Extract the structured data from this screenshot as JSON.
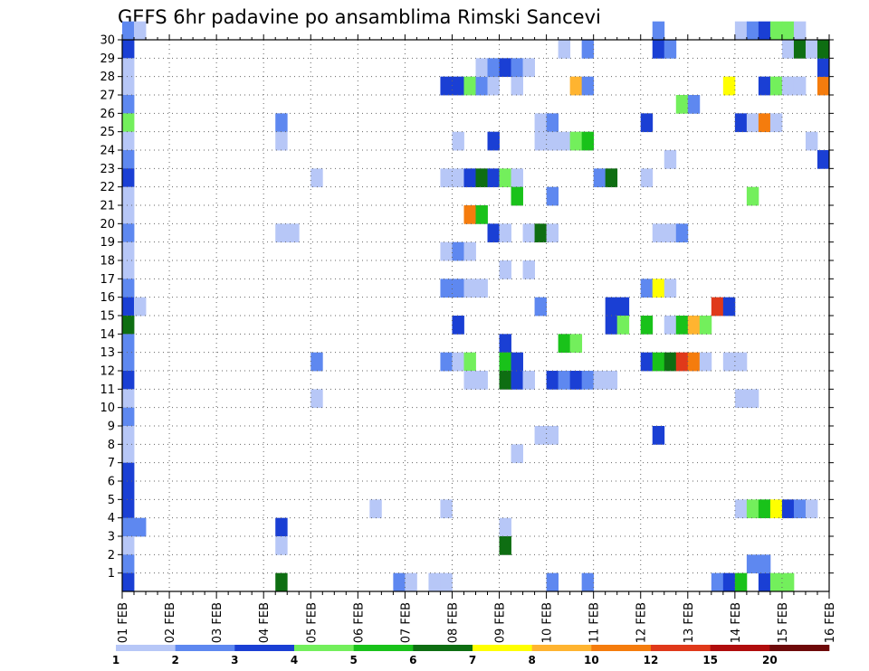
{
  "chart_data": {
    "type": "heatmap",
    "title": "GEFS 6hr padavine po ansamblima Rimski Sancevi",
    "y_ticks": [
      "1",
      "2",
      "3",
      "4",
      "5",
      "6",
      "7",
      "8",
      "9",
      "10",
      "11",
      "12",
      "13",
      "14",
      "15",
      "16",
      "17",
      "18",
      "19",
      "20",
      "21",
      "22",
      "23",
      "24",
      "25",
      "26",
      "27",
      "28",
      "29",
      "30"
    ],
    "x_ticks": [
      "01 FEB",
      "02 FEB",
      "03 FEB",
      "04 FEB",
      "05 FEB",
      "06 FEB",
      "07 FEB",
      "08 FEB",
      "09 FEB",
      "10 FEB",
      "11 FEB",
      "12 FEB",
      "13 FEB",
      "14 FEB",
      "15 FEB",
      "16 FEB"
    ],
    "x_range_days": [
      0,
      15
    ],
    "member_range": [
      0,
      30
    ],
    "grid": true,
    "colorbar": {
      "placement": "bottom",
      "colors": [
        "#b7c7f7",
        "#5e88f0",
        "#1a3fd4",
        "#73ef5c",
        "#19c21a",
        "#0e6e12",
        "#ffff00",
        "#ffb430",
        "#f57c0d",
        "#e0391a",
        "#b00d0d",
        "#6e0a0a"
      ],
      "labels": [
        "1",
        "2",
        "3",
        "4",
        "5",
        "6",
        "7",
        "8",
        "10",
        "12",
        "15",
        "20"
      ]
    },
    "cells": [
      [
        0,
        30,
        1
      ],
      [
        1,
        30,
        0
      ],
      [
        0,
        29,
        2
      ],
      [
        0,
        28,
        0
      ],
      [
        0,
        27,
        0
      ],
      [
        0,
        26,
        1
      ],
      [
        0,
        25,
        3
      ],
      [
        0,
        24,
        0
      ],
      [
        0,
        23,
        1
      ],
      [
        0,
        22,
        2
      ],
      [
        0,
        21,
        0
      ],
      [
        0,
        20,
        0
      ],
      [
        0,
        19,
        1
      ],
      [
        0,
        18,
        0
      ],
      [
        0,
        17,
        0
      ],
      [
        0,
        16,
        1
      ],
      [
        0,
        15,
        2
      ],
      [
        1,
        15,
        0
      ],
      [
        0,
        14,
        5
      ],
      [
        0,
        13,
        1
      ],
      [
        0,
        12,
        1
      ],
      [
        0,
        11,
        2
      ],
      [
        0,
        10,
        0
      ],
      [
        0,
        9,
        1
      ],
      [
        0,
        8,
        0
      ],
      [
        0,
        7,
        0
      ],
      [
        0,
        6,
        2
      ],
      [
        0,
        5,
        2
      ],
      [
        0,
        4,
        2
      ],
      [
        0,
        3,
        1
      ],
      [
        1,
        3,
        1
      ],
      [
        0,
        2,
        0
      ],
      [
        0,
        1,
        1
      ],
      [
        0,
        0,
        2
      ],
      [
        23,
        0,
        1
      ],
      [
        24,
        0,
        0
      ],
      [
        26,
        0,
        0
      ],
      [
        27,
        0,
        0
      ],
      [
        36,
        0,
        1
      ],
      [
        39,
        0,
        1
      ],
      [
        50,
        0,
        1
      ],
      [
        51,
        0,
        2
      ],
      [
        52,
        0,
        4
      ],
      [
        54,
        0,
        2
      ],
      [
        55,
        0,
        3
      ],
      [
        56,
        0,
        3
      ],
      [
        13,
        25,
        1
      ],
      [
        13,
        24,
        0
      ],
      [
        16,
        22,
        0
      ],
      [
        13,
        19,
        0
      ],
      [
        14,
        19,
        0
      ],
      [
        16,
        12,
        1
      ],
      [
        16,
        10,
        0
      ],
      [
        13,
        3,
        2
      ],
      [
        13,
        2,
        0
      ],
      [
        13,
        0,
        5
      ],
      [
        21,
        4,
        0
      ],
      [
        27,
        4,
        0
      ],
      [
        27,
        27,
        2
      ],
      [
        28,
        27,
        2
      ],
      [
        29,
        27,
        3
      ],
      [
        30,
        27,
        1
      ],
      [
        31,
        27,
        0
      ],
      [
        33,
        27,
        0
      ],
      [
        38,
        27,
        7
      ],
      [
        39,
        27,
        1
      ],
      [
        51,
        27,
        6
      ],
      [
        54,
        27,
        2
      ],
      [
        55,
        27,
        3
      ],
      [
        56,
        27,
        0
      ],
      [
        57,
        27,
        0
      ],
      [
        59,
        27,
        8
      ],
      [
        30,
        28,
        0
      ],
      [
        31,
        28,
        1
      ],
      [
        32,
        28,
        2
      ],
      [
        33,
        28,
        1
      ],
      [
        34,
        28,
        0
      ],
      [
        59,
        28,
        2
      ],
      [
        37,
        29,
        0
      ],
      [
        39,
        29,
        1
      ],
      [
        45,
        29,
        2
      ],
      [
        46,
        29,
        1
      ],
      [
        56,
        29,
        0
      ],
      [
        57,
        29,
        5
      ],
      [
        58,
        29,
        0
      ],
      [
        59,
        29,
        5
      ],
      [
        45,
        30,
        1
      ],
      [
        52,
        30,
        0
      ],
      [
        53,
        30,
        1
      ],
      [
        54,
        30,
        2
      ],
      [
        55,
        30,
        3
      ],
      [
        56,
        30,
        3
      ],
      [
        57,
        30,
        0
      ],
      [
        47,
        26,
        3
      ],
      [
        48,
        26,
        1
      ],
      [
        35,
        25,
        0
      ],
      [
        36,
        25,
        1
      ],
      [
        44,
        25,
        2
      ],
      [
        52,
        25,
        2
      ],
      [
        53,
        25,
        0
      ],
      [
        54,
        25,
        8
      ],
      [
        55,
        25,
        0
      ],
      [
        28,
        24,
        0
      ],
      [
        31,
        24,
        2
      ],
      [
        35,
        24,
        0
      ],
      [
        36,
        24,
        0
      ],
      [
        37,
        24,
        0
      ],
      [
        38,
        24,
        3
      ],
      [
        39,
        24,
        4
      ],
      [
        58,
        24,
        0
      ],
      [
        46,
        23,
        0
      ],
      [
        59,
        23,
        2
      ],
      [
        27,
        22,
        0
      ],
      [
        28,
        22,
        0
      ],
      [
        29,
        22,
        2
      ],
      [
        30,
        22,
        5
      ],
      [
        31,
        22,
        2
      ],
      [
        32,
        22,
        3
      ],
      [
        33,
        22,
        0
      ],
      [
        40,
        22,
        1
      ],
      [
        41,
        22,
        5
      ],
      [
        44,
        22,
        0
      ],
      [
        33,
        21,
        4
      ],
      [
        36,
        21,
        1
      ],
      [
        53,
        21,
        3
      ],
      [
        29,
        20,
        8
      ],
      [
        30,
        20,
        4
      ],
      [
        31,
        19,
        2
      ],
      [
        32,
        19,
        0
      ],
      [
        34,
        19,
        0
      ],
      [
        35,
        19,
        5
      ],
      [
        36,
        19,
        0
      ],
      [
        45,
        19,
        0
      ],
      [
        46,
        19,
        0
      ],
      [
        47,
        19,
        1
      ],
      [
        27,
        18,
        0
      ],
      [
        28,
        18,
        1
      ],
      [
        29,
        18,
        0
      ],
      [
        32,
        17,
        0
      ],
      [
        34,
        17,
        0
      ],
      [
        27,
        16,
        1
      ],
      [
        28,
        16,
        1
      ],
      [
        29,
        16,
        0
      ],
      [
        30,
        16,
        0
      ],
      [
        44,
        16,
        1
      ],
      [
        45,
        16,
        6
      ],
      [
        46,
        16,
        0
      ],
      [
        35,
        15,
        1
      ],
      [
        41,
        15,
        2
      ],
      [
        42,
        15,
        2
      ],
      [
        50,
        15,
        9
      ],
      [
        51,
        15,
        2
      ],
      [
        28,
        14,
        2
      ],
      [
        41,
        14,
        2
      ],
      [
        42,
        14,
        3
      ],
      [
        44,
        14,
        4
      ],
      [
        46,
        14,
        0
      ],
      [
        47,
        14,
        4
      ],
      [
        48,
        14,
        7
      ],
      [
        49,
        14,
        3
      ],
      [
        32,
        13,
        2
      ],
      [
        37,
        13,
        4
      ],
      [
        38,
        13,
        3
      ],
      [
        27,
        12,
        1
      ],
      [
        28,
        12,
        0
      ],
      [
        29,
        12,
        3
      ],
      [
        32,
        12,
        4
      ],
      [
        33,
        12,
        2
      ],
      [
        44,
        12,
        2
      ],
      [
        45,
        12,
        4
      ],
      [
        46,
        12,
        5
      ],
      [
        47,
        12,
        9
      ],
      [
        48,
        12,
        8
      ],
      [
        49,
        12,
        0
      ],
      [
        51,
        12,
        0
      ],
      [
        52,
        12,
        0
      ],
      [
        29,
        11,
        0
      ],
      [
        30,
        11,
        0
      ],
      [
        32,
        11,
        5
      ],
      [
        33,
        11,
        2
      ],
      [
        34,
        11,
        0
      ],
      [
        36,
        11,
        2
      ],
      [
        37,
        11,
        1
      ],
      [
        38,
        11,
        2
      ],
      [
        39,
        11,
        1
      ],
      [
        40,
        11,
        0
      ],
      [
        41,
        11,
        0
      ],
      [
        52,
        10,
        0
      ],
      [
        53,
        10,
        0
      ],
      [
        35,
        8,
        0
      ],
      [
        36,
        8,
        0
      ],
      [
        45,
        8,
        2
      ],
      [
        33,
        7,
        0
      ],
      [
        52,
        4,
        0
      ],
      [
        53,
        4,
        3
      ],
      [
        54,
        4,
        4
      ],
      [
        55,
        4,
        6
      ],
      [
        56,
        4,
        2
      ],
      [
        57,
        4,
        1
      ],
      [
        58,
        4,
        0
      ],
      [
        32,
        3,
        0
      ],
      [
        32,
        2,
        5
      ],
      [
        53,
        1,
        1
      ],
      [
        54,
        1,
        1
      ]
    ]
  }
}
